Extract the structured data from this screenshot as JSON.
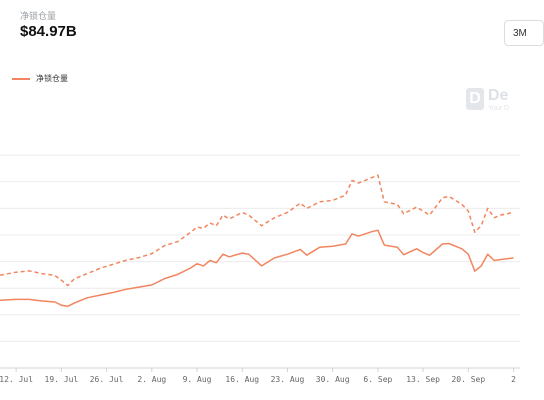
{
  "header": {
    "metric_label": "净锁仓量",
    "metric_value": "$84.97B",
    "range_button": "3M"
  },
  "brand": {
    "name": "De",
    "tagline": "Your D"
  },
  "colors": {
    "accent": "#f2855f",
    "grid": "#ececec"
  },
  "chart_data": {
    "type": "line",
    "title": "",
    "xlabel": "",
    "ylabel": "",
    "legend": {
      "entries": [
        "净锁仓量"
      ],
      "placement": "top-left"
    },
    "grid": true,
    "x_ticks": [
      "12. Jul",
      "19. Jul",
      "26. Jul",
      "2. Aug",
      "9. Aug",
      "16. Aug",
      "23. Aug",
      "30. Aug",
      "6. Sep",
      "13. Sep",
      "20. Sep",
      "2"
    ],
    "x_tick_days": [
      2,
      9,
      16,
      23,
      30,
      37,
      44,
      51,
      58,
      65,
      72,
      79
    ],
    "x_range_days": [
      -0.5,
      80
    ],
    "y_range": [
      0,
      100
    ],
    "y_gridlines": [
      0,
      10,
      20,
      30,
      40,
      50,
      60,
      70,
      80
    ],
    "series": [
      {
        "name": "净锁仓量",
        "style": "solid",
        "points": [
          [
            -0.5,
            25.5
          ],
          [
            2,
            25.8
          ],
          [
            4,
            25.8
          ],
          [
            6,
            25.2
          ],
          [
            8,
            24.8
          ],
          [
            9,
            23.6
          ],
          [
            10,
            23.2
          ],
          [
            11,
            24.4
          ],
          [
            13,
            26.4
          ],
          [
            15,
            27.4
          ],
          [
            17,
            28.4
          ],
          [
            19,
            29.6
          ],
          [
            21,
            30.4
          ],
          [
            23,
            31.2
          ],
          [
            25,
            33.6
          ],
          [
            27,
            35.2
          ],
          [
            29,
            37.6
          ],
          [
            30,
            39.2
          ],
          [
            31,
            38.4
          ],
          [
            32,
            40.4
          ],
          [
            33,
            39.6
          ],
          [
            34,
            42.8
          ],
          [
            35,
            41.8
          ],
          [
            37,
            43.2
          ],
          [
            38,
            42.8
          ],
          [
            40,
            38.4
          ],
          [
            42,
            41.4
          ],
          [
            44,
            42.8
          ],
          [
            46,
            44.6
          ],
          [
            47,
            42.4
          ],
          [
            49,
            45.4
          ],
          [
            51,
            45.8
          ],
          [
            53,
            46.6
          ],
          [
            54,
            50.4
          ],
          [
            55,
            49.6
          ],
          [
            57,
            51.2
          ],
          [
            58,
            51.8
          ],
          [
            59,
            46.2
          ],
          [
            61,
            45.4
          ],
          [
            62,
            42.6
          ],
          [
            64,
            44.8
          ],
          [
            65,
            43.4
          ],
          [
            66,
            42.4
          ],
          [
            68,
            46.6
          ],
          [
            69,
            46.8
          ],
          [
            71,
            44.8
          ],
          [
            72,
            42.8
          ],
          [
            73,
            36.4
          ],
          [
            74,
            38.4
          ],
          [
            75,
            42.8
          ],
          [
            76,
            40.4
          ],
          [
            77,
            40.8
          ],
          [
            79,
            41.4
          ]
        ]
      },
      {
        "name": "",
        "style": "dashed",
        "points": [
          [
            -0.5,
            34.9
          ],
          [
            2,
            36.0
          ],
          [
            4,
            36.5
          ],
          [
            6,
            35.5
          ],
          [
            8,
            34.8
          ],
          [
            9,
            33.0
          ],
          [
            10,
            31.0
          ],
          [
            11,
            33.5
          ],
          [
            13,
            35.5
          ],
          [
            15,
            37.5
          ],
          [
            17,
            39.0
          ],
          [
            19,
            40.5
          ],
          [
            21,
            41.5
          ],
          [
            23,
            43.0
          ],
          [
            25,
            46.0
          ],
          [
            27,
            47.5
          ],
          [
            29,
            51.0
          ],
          [
            30,
            53.0
          ],
          [
            31,
            52.5
          ],
          [
            32,
            54.5
          ],
          [
            33,
            53.5
          ],
          [
            34,
            57.5
          ],
          [
            35,
            56.0
          ],
          [
            37,
            58.5
          ],
          [
            38,
            57.5
          ],
          [
            40,
            53.5
          ],
          [
            42,
            56.5
          ],
          [
            44,
            58.5
          ],
          [
            46,
            62.0
          ],
          [
            47,
            60.0
          ],
          [
            49,
            62.5
          ],
          [
            51,
            63.0
          ],
          [
            53,
            65.0
          ],
          [
            54,
            70.5
          ],
          [
            55,
            69.5
          ],
          [
            57,
            71.5
          ],
          [
            58,
            72.5
          ],
          [
            59,
            62.5
          ],
          [
            61,
            61.5
          ],
          [
            62,
            58.0
          ],
          [
            64,
            60.5
          ],
          [
            65,
            59.0
          ],
          [
            66,
            57.5
          ],
          [
            68,
            64.0
          ],
          [
            69,
            64.5
          ],
          [
            71,
            61.5
          ],
          [
            72,
            59.0
          ],
          [
            73,
            51.0
          ],
          [
            74,
            53.5
          ],
          [
            75,
            60.0
          ],
          [
            76,
            56.5
          ],
          [
            77,
            57.5
          ],
          [
            79,
            58.5
          ]
        ]
      }
    ]
  }
}
